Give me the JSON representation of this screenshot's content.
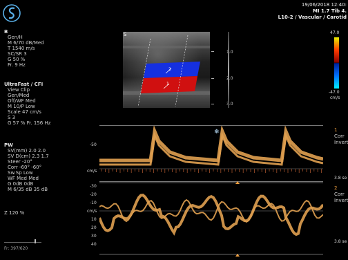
{
  "header": {
    "datetime": "19/06/2018 12:40:",
    "mi_tib": "MI 1.7  Tib  4.",
    "probe_preset": "L10-2 / Vascular / Carotid"
  },
  "bmode_panel": {
    "title": "B",
    "lines": [
      "Gen/H",
      "M 6/70 dB/Med",
      "T 1540 m/s",
      "SC/SR 3",
      "G 50 %",
      "Fr. 9 Hz"
    ]
  },
  "cfi_panel": {
    "title": "UltraFast / CFI",
    "lines": [
      "View Clip",
      "Gen/Med",
      "Off/WF Med",
      "M 10/P Low",
      "Scale 47 cm/s",
      "S 3",
      "G 57 %  Fr. 156 Hz"
    ]
  },
  "pw_panel": {
    "title": "PW",
    "lines": [
      "SV(mm) 2.0 2.0",
      "SV D(cm) 2.3 1.7",
      "Steer -20°",
      "Corr -60° -60°",
      "Sw.Sp Low",
      "WF Med Med",
      "G 0dB 0dB",
      "M 6/35 dB 35 dB"
    ]
  },
  "zoom": "Z  120  %",
  "frame": "Fr: 397/620",
  "depth_scale": [
    "1.0",
    "2.0",
    "3.0"
  ],
  "colorbar": {
    "top": "47.0",
    "bottom": "-47.0",
    "unit": "cm/s"
  },
  "doppler1": {
    "gate": "1",
    "corr": "Corr",
    "invert": "Invert",
    "scale_value": "-50",
    "unit": "cm/s",
    "end_label": "3.8 se"
  },
  "doppler2": {
    "gate": "2",
    "corr": "Corr",
    "invert": "Invert",
    "scale_values": [
      "-30",
      "-20",
      "-10",
      "cm/s",
      "10",
      "20",
      "30",
      "40"
    ],
    "end_label": "3.8 se"
  },
  "colors": {
    "doppler_trace": "#e0a050",
    "flow_red": "#d01010",
    "flow_blue": "#1530e0",
    "box_line": "#bfbfbf"
  }
}
